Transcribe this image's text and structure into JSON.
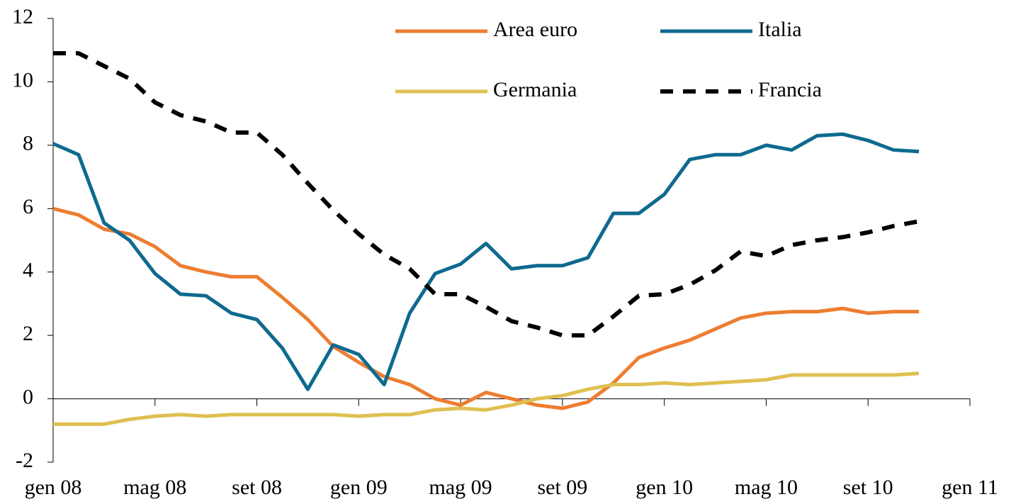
{
  "chart_data": {
    "type": "line",
    "x": [
      0,
      1,
      2,
      3,
      4,
      5,
      6,
      7,
      8,
      9,
      10,
      11,
      12,
      13,
      14,
      15,
      16,
      17,
      18,
      19,
      20,
      21,
      22,
      23,
      24,
      25,
      26,
      27,
      28,
      29,
      30,
      31,
      32,
      33,
      34
    ],
    "xlim": [
      0,
      36
    ],
    "xticks": [
      {
        "value": 0,
        "label": "gen 08"
      },
      {
        "value": 4,
        "label": "mag 08"
      },
      {
        "value": 8,
        "label": "set 08"
      },
      {
        "value": 12,
        "label": "gen 09"
      },
      {
        "value": 16,
        "label": "mag 09"
      },
      {
        "value": 20,
        "label": "set 09"
      },
      {
        "value": 24,
        "label": "gen 10"
      },
      {
        "value": 28,
        "label": "mag 10"
      },
      {
        "value": 32,
        "label": "set 10"
      },
      {
        "value": 36,
        "label": "gen 11"
      }
    ],
    "ylim": [
      -2,
      12
    ],
    "yticks": [
      -2,
      0,
      2,
      4,
      6,
      8,
      10,
      12
    ],
    "series": [
      {
        "name": "Area euro",
        "color": "#ed7d31",
        "dash": false,
        "values": [
          6.0,
          5.8,
          5.35,
          5.2,
          4.8,
          4.2,
          4.0,
          3.85,
          3.85,
          3.2,
          2.5,
          1.65,
          1.15,
          0.7,
          0.45,
          0.0,
          -0.2,
          0.2,
          0.0,
          -0.2,
          -0.3,
          -0.1,
          0.5,
          1.3,
          1.6,
          1.85,
          2.2,
          2.55,
          2.7,
          2.75,
          2.75,
          2.85,
          2.7,
          2.75,
          2.75
        ]
      },
      {
        "name": "Italia",
        "color": "#0e6a8e",
        "dash": false,
        "values": [
          8.05,
          7.7,
          5.55,
          5.0,
          3.95,
          3.3,
          3.25,
          2.7,
          2.5,
          1.6,
          0.3,
          1.7,
          1.4,
          0.45,
          2.7,
          3.95,
          4.25,
          4.9,
          4.1,
          4.2,
          4.2,
          4.45,
          5.85,
          5.85,
          6.45,
          7.55,
          7.7,
          7.7,
          8.0,
          7.85,
          8.3,
          8.35,
          8.15,
          7.85,
          7.8
        ]
      },
      {
        "name": "Germania",
        "color": "#dfc050",
        "dash": false,
        "values": [
          -0.8,
          -0.8,
          -0.8,
          -0.65,
          -0.55,
          -0.5,
          -0.55,
          -0.5,
          -0.5,
          -0.5,
          -0.5,
          -0.5,
          -0.55,
          -0.5,
          -0.5,
          -0.35,
          -0.3,
          -0.35,
          -0.2,
          0.0,
          0.1,
          0.3,
          0.45,
          0.45,
          0.5,
          0.45,
          0.5,
          0.55,
          0.6,
          0.75,
          0.75,
          0.75,
          0.75,
          0.75,
          0.8
        ]
      },
      {
        "name": "Francia",
        "color": "#000000",
        "dash": true,
        "values": [
          10.9,
          10.9,
          10.5,
          10.1,
          9.35,
          8.95,
          8.75,
          8.4,
          8.4,
          7.7,
          6.8,
          5.95,
          5.2,
          4.55,
          4.1,
          3.3,
          3.3,
          2.9,
          2.45,
          2.25,
          2.0,
          2.0,
          2.6,
          3.25,
          3.3,
          3.6,
          4.05,
          4.65,
          4.5,
          4.85,
          5.0,
          5.1,
          5.25,
          5.45,
          5.6
        ]
      }
    ]
  }
}
